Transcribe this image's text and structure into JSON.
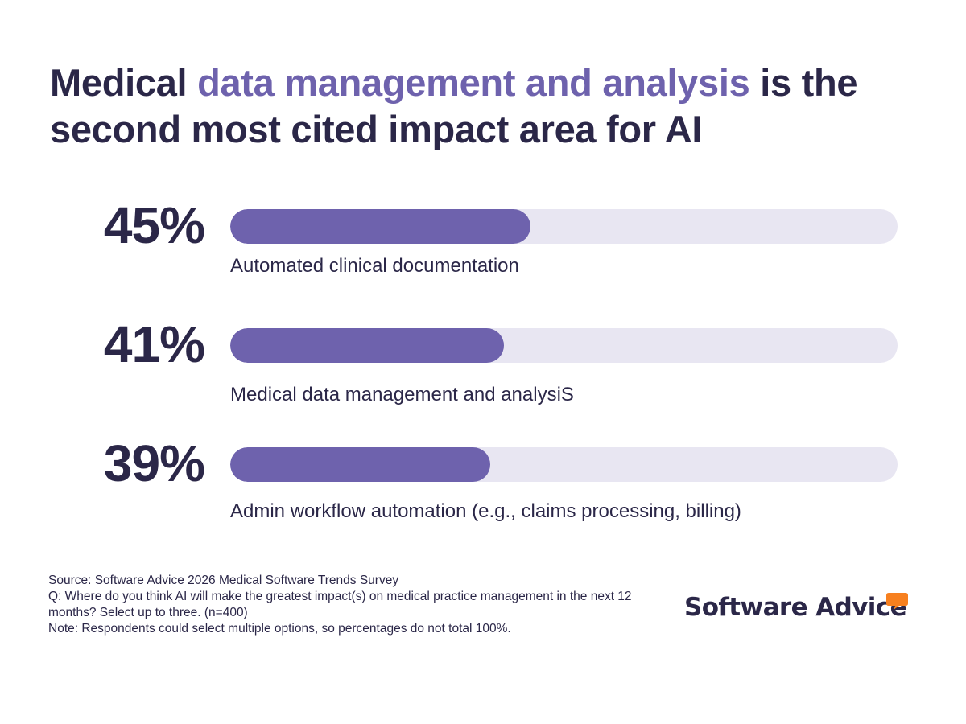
{
  "title": {
    "prefix": "Medical ",
    "highlight": "data management and analysis",
    "suffix": " is the second most cited impact area for AI"
  },
  "colors": {
    "text": "#2b2748",
    "accent": "#6e62ad",
    "track": "#e8e6f2",
    "logo_bubble": "#f7801f"
  },
  "chart_data": {
    "type": "bar",
    "orientation": "horizontal",
    "title": "Medical data management and analysis is the second most cited impact area for AI",
    "xlim": [
      0,
      100
    ],
    "categories": [
      "Automated clinical documentation",
      "Medical data management and analysiS",
      "Admin workflow automation (e.g., claims processing, billing)"
    ],
    "values": [
      45,
      41,
      39
    ],
    "value_labels": [
      "45%",
      "41%",
      "39%"
    ]
  },
  "footnotes": {
    "source": "Source: Software Advice 2026 Medical Software Trends Survey",
    "question": "Q: Where do you think AI will make the greatest impact(s) on medical practice management in the next 12 months? Select up to three. (n=400)",
    "note": "Note: Respondents could select multiple options, so percentages do not total 100%."
  },
  "logo": {
    "text": "Software Advice",
    "icon": "speech-bubble-icon"
  }
}
